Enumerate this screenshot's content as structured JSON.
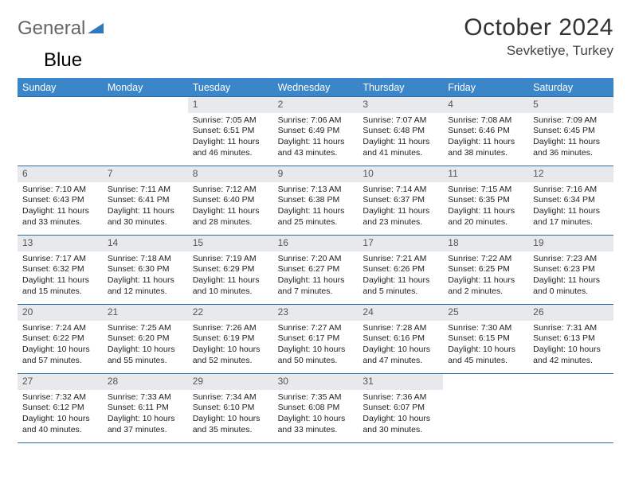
{
  "logo": {
    "part1": "General",
    "part2": "Blue"
  },
  "title": "October 2024",
  "location": "Sevketiye, Turkey",
  "colors": {
    "header_bg": "#3b86c8",
    "header_border": "#2d6aa0",
    "daynum_bg": "#e7e9ec",
    "text": "#222222",
    "logo_gray": "#666666",
    "logo_blue": "#2e78bd"
  },
  "day_headers": [
    "Sunday",
    "Monday",
    "Tuesday",
    "Wednesday",
    "Thursday",
    "Friday",
    "Saturday"
  ],
  "weeks": [
    [
      {
        "n": "",
        "empty": true
      },
      {
        "n": "",
        "empty": true
      },
      {
        "n": "1",
        "sr": "Sunrise: 7:05 AM",
        "ss": "Sunset: 6:51 PM",
        "dl1": "Daylight: 11 hours",
        "dl2": "and 46 minutes."
      },
      {
        "n": "2",
        "sr": "Sunrise: 7:06 AM",
        "ss": "Sunset: 6:49 PM",
        "dl1": "Daylight: 11 hours",
        "dl2": "and 43 minutes."
      },
      {
        "n": "3",
        "sr": "Sunrise: 7:07 AM",
        "ss": "Sunset: 6:48 PM",
        "dl1": "Daylight: 11 hours",
        "dl2": "and 41 minutes."
      },
      {
        "n": "4",
        "sr": "Sunrise: 7:08 AM",
        "ss": "Sunset: 6:46 PM",
        "dl1": "Daylight: 11 hours",
        "dl2": "and 38 minutes."
      },
      {
        "n": "5",
        "sr": "Sunrise: 7:09 AM",
        "ss": "Sunset: 6:45 PM",
        "dl1": "Daylight: 11 hours",
        "dl2": "and 36 minutes."
      }
    ],
    [
      {
        "n": "6",
        "sr": "Sunrise: 7:10 AM",
        "ss": "Sunset: 6:43 PM",
        "dl1": "Daylight: 11 hours",
        "dl2": "and 33 minutes."
      },
      {
        "n": "7",
        "sr": "Sunrise: 7:11 AM",
        "ss": "Sunset: 6:41 PM",
        "dl1": "Daylight: 11 hours",
        "dl2": "and 30 minutes."
      },
      {
        "n": "8",
        "sr": "Sunrise: 7:12 AM",
        "ss": "Sunset: 6:40 PM",
        "dl1": "Daylight: 11 hours",
        "dl2": "and 28 minutes."
      },
      {
        "n": "9",
        "sr": "Sunrise: 7:13 AM",
        "ss": "Sunset: 6:38 PM",
        "dl1": "Daylight: 11 hours",
        "dl2": "and 25 minutes."
      },
      {
        "n": "10",
        "sr": "Sunrise: 7:14 AM",
        "ss": "Sunset: 6:37 PM",
        "dl1": "Daylight: 11 hours",
        "dl2": "and 23 minutes."
      },
      {
        "n": "11",
        "sr": "Sunrise: 7:15 AM",
        "ss": "Sunset: 6:35 PM",
        "dl1": "Daylight: 11 hours",
        "dl2": "and 20 minutes."
      },
      {
        "n": "12",
        "sr": "Sunrise: 7:16 AM",
        "ss": "Sunset: 6:34 PM",
        "dl1": "Daylight: 11 hours",
        "dl2": "and 17 minutes."
      }
    ],
    [
      {
        "n": "13",
        "sr": "Sunrise: 7:17 AM",
        "ss": "Sunset: 6:32 PM",
        "dl1": "Daylight: 11 hours",
        "dl2": "and 15 minutes."
      },
      {
        "n": "14",
        "sr": "Sunrise: 7:18 AM",
        "ss": "Sunset: 6:30 PM",
        "dl1": "Daylight: 11 hours",
        "dl2": "and 12 minutes."
      },
      {
        "n": "15",
        "sr": "Sunrise: 7:19 AM",
        "ss": "Sunset: 6:29 PM",
        "dl1": "Daylight: 11 hours",
        "dl2": "and 10 minutes."
      },
      {
        "n": "16",
        "sr": "Sunrise: 7:20 AM",
        "ss": "Sunset: 6:27 PM",
        "dl1": "Daylight: 11 hours",
        "dl2": "and 7 minutes."
      },
      {
        "n": "17",
        "sr": "Sunrise: 7:21 AM",
        "ss": "Sunset: 6:26 PM",
        "dl1": "Daylight: 11 hours",
        "dl2": "and 5 minutes."
      },
      {
        "n": "18",
        "sr": "Sunrise: 7:22 AM",
        "ss": "Sunset: 6:25 PM",
        "dl1": "Daylight: 11 hours",
        "dl2": "and 2 minutes."
      },
      {
        "n": "19",
        "sr": "Sunrise: 7:23 AM",
        "ss": "Sunset: 6:23 PM",
        "dl1": "Daylight: 11 hours",
        "dl2": "and 0 minutes."
      }
    ],
    [
      {
        "n": "20",
        "sr": "Sunrise: 7:24 AM",
        "ss": "Sunset: 6:22 PM",
        "dl1": "Daylight: 10 hours",
        "dl2": "and 57 minutes."
      },
      {
        "n": "21",
        "sr": "Sunrise: 7:25 AM",
        "ss": "Sunset: 6:20 PM",
        "dl1": "Daylight: 10 hours",
        "dl2": "and 55 minutes."
      },
      {
        "n": "22",
        "sr": "Sunrise: 7:26 AM",
        "ss": "Sunset: 6:19 PM",
        "dl1": "Daylight: 10 hours",
        "dl2": "and 52 minutes."
      },
      {
        "n": "23",
        "sr": "Sunrise: 7:27 AM",
        "ss": "Sunset: 6:17 PM",
        "dl1": "Daylight: 10 hours",
        "dl2": "and 50 minutes."
      },
      {
        "n": "24",
        "sr": "Sunrise: 7:28 AM",
        "ss": "Sunset: 6:16 PM",
        "dl1": "Daylight: 10 hours",
        "dl2": "and 47 minutes."
      },
      {
        "n": "25",
        "sr": "Sunrise: 7:30 AM",
        "ss": "Sunset: 6:15 PM",
        "dl1": "Daylight: 10 hours",
        "dl2": "and 45 minutes."
      },
      {
        "n": "26",
        "sr": "Sunrise: 7:31 AM",
        "ss": "Sunset: 6:13 PM",
        "dl1": "Daylight: 10 hours",
        "dl2": "and 42 minutes."
      }
    ],
    [
      {
        "n": "27",
        "sr": "Sunrise: 7:32 AM",
        "ss": "Sunset: 6:12 PM",
        "dl1": "Daylight: 10 hours",
        "dl2": "and 40 minutes."
      },
      {
        "n": "28",
        "sr": "Sunrise: 7:33 AM",
        "ss": "Sunset: 6:11 PM",
        "dl1": "Daylight: 10 hours",
        "dl2": "and 37 minutes."
      },
      {
        "n": "29",
        "sr": "Sunrise: 7:34 AM",
        "ss": "Sunset: 6:10 PM",
        "dl1": "Daylight: 10 hours",
        "dl2": "and 35 minutes."
      },
      {
        "n": "30",
        "sr": "Sunrise: 7:35 AM",
        "ss": "Sunset: 6:08 PM",
        "dl1": "Daylight: 10 hours",
        "dl2": "and 33 minutes."
      },
      {
        "n": "31",
        "sr": "Sunrise: 7:36 AM",
        "ss": "Sunset: 6:07 PM",
        "dl1": "Daylight: 10 hours",
        "dl2": "and 30 minutes."
      },
      {
        "n": "",
        "empty": true
      },
      {
        "n": "",
        "empty": true
      }
    ]
  ]
}
